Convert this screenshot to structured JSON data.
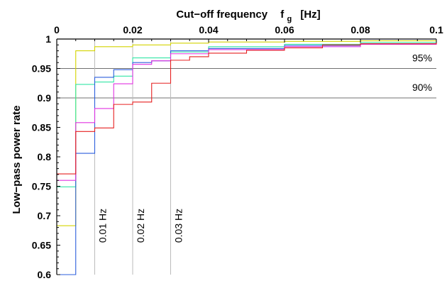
{
  "chart_data": {
    "type": "line",
    "step": true,
    "xlabel_main": "Cut−off frequency",
    "xlabel_var": "f",
    "xlabel_sub": "g",
    "xlabel_unit": "[Hz]",
    "ylabel": "Low−pass  power  rate",
    "xlim": [
      0,
      0.1
    ],
    "ylim": [
      0.6,
      1
    ],
    "x_ticks": [
      0,
      0.02,
      0.04,
      0.06,
      0.08,
      0.1
    ],
    "x_tick_labels": [
      "0",
      "0.02",
      "0.04",
      "0.06",
      "0.08",
      "0.1"
    ],
    "y_ticks": [
      0.6,
      0.65,
      0.7,
      0.75,
      0.8,
      0.85,
      0.9,
      0.95,
      1
    ],
    "y_tick_labels": [
      "0.6",
      "0.65",
      "0.7",
      "0.75",
      "0.8",
      "0.85",
      "0.9",
      "0.95",
      "1"
    ],
    "x_axis_position": "top",
    "grid": false,
    "horizontal_refs": [
      {
        "y": 0.95,
        "label": "95%",
        "color": "#707070"
      },
      {
        "y": 0.9,
        "label": "90%",
        "color": "#707070"
      }
    ],
    "vertical_refs": [
      {
        "x": 0.01,
        "label": "0.01 Hz",
        "color": "#bbbbbb"
      },
      {
        "x": 0.02,
        "label": "0.02 Hz",
        "color": "#bbbbbb"
      },
      {
        "x": 0.03,
        "label": "0.03 Hz",
        "color": "#bbbbbb"
      }
    ],
    "series": [
      {
        "color": "#d4d400",
        "x": [
          0,
          0.005,
          0.01,
          0.02,
          0.03,
          0.04,
          0.06,
          0.08,
          0.1
        ],
        "y": [
          0.683,
          0.98,
          0.987,
          0.99,
          0.993,
          0.995,
          0.996,
          0.997,
          0.997
        ]
      },
      {
        "color": "#33e6a6",
        "x": [
          0,
          0.005,
          0.01,
          0.015,
          0.02,
          0.03,
          0.04,
          0.06,
          0.08,
          0.1
        ],
        "y": [
          0.749,
          0.923,
          0.927,
          0.937,
          0.968,
          0.978,
          0.987,
          0.991,
          0.994,
          0.996
        ]
      },
      {
        "color": "#2d5fdc",
        "x": [
          0,
          0.005,
          0.01,
          0.015,
          0.02,
          0.025,
          0.03,
          0.04,
          0.06,
          0.08,
          0.1
        ],
        "y": [
          0.6,
          0.806,
          0.935,
          0.948,
          0.96,
          0.963,
          0.98,
          0.984,
          0.989,
          0.992,
          0.995
        ]
      },
      {
        "color": "#e033e0",
        "x": [
          0,
          0.005,
          0.01,
          0.015,
          0.02,
          0.025,
          0.03,
          0.04,
          0.06,
          0.08,
          0.1
        ],
        "y": [
          0.76,
          0.858,
          0.882,
          0.924,
          0.957,
          0.963,
          0.975,
          0.982,
          0.987,
          0.991,
          0.994
        ]
      },
      {
        "color": "#e62020",
        "x": [
          0,
          0.005,
          0.01,
          0.015,
          0.02,
          0.025,
          0.03,
          0.035,
          0.04,
          0.05,
          0.06,
          0.07,
          0.08,
          0.1
        ],
        "y": [
          0.771,
          0.843,
          0.849,
          0.889,
          0.893,
          0.925,
          0.964,
          0.97,
          0.976,
          0.981,
          0.985,
          0.99,
          0.992,
          0.994
        ]
      }
    ]
  }
}
